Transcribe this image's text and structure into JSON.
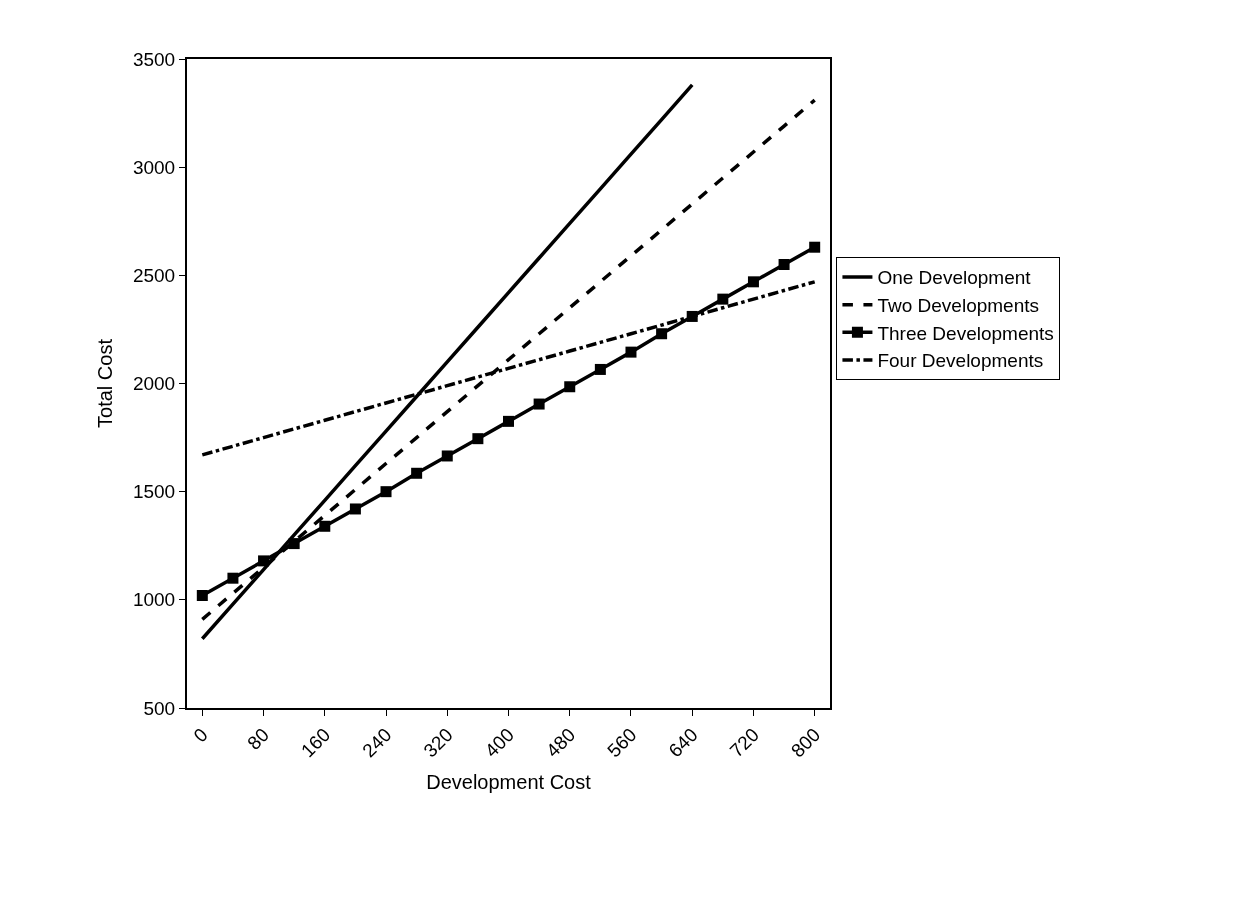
{
  "chart_data": {
    "type": "line",
    "xlabel": "Development Cost",
    "ylabel": "Total Cost",
    "categories": [
      "0",
      null,
      "80",
      null,
      "160",
      null,
      "240",
      null,
      "320",
      null,
      "400",
      null,
      "480",
      null,
      "560",
      null,
      "640",
      null,
      "720",
      null,
      "800"
    ],
    "ylim": [
      500,
      3500
    ],
    "yticks": [
      500,
      1000,
      1500,
      2000,
      2500,
      3000,
      3500
    ],
    "grid": false,
    "legend": "right",
    "series": [
      {
        "name": "One Development",
        "color": "#000000",
        "line_style": "solid",
        "marker": "none",
        "values": [
          820,
          980,
          1140,
          1300,
          1460,
          1620,
          1780,
          1940,
          2100,
          2260,
          2420,
          2580,
          2740,
          2900,
          3060,
          3220,
          3380,
          null,
          null,
          null,
          null
        ]
      },
      {
        "name": "Two Developments",
        "color": "#000000",
        "line_style": "dashed",
        "marker": "none",
        "values": [
          910,
          1030,
          1150,
          1270,
          1390,
          1510,
          1630,
          1750,
          1870,
          1990,
          2110,
          2230,
          2350,
          2470,
          2590,
          2710,
          2830,
          2950,
          3070,
          3190,
          3310
        ]
      },
      {
        "name": "Three Developments",
        "color": "#000000",
        "line_style": "solid",
        "marker": "square",
        "values": [
          1020,
          1100,
          1180,
          1260,
          1340,
          1420,
          1500,
          1585,
          1665,
          1745,
          1825,
          1905,
          1985,
          2065,
          2145,
          2230,
          2310,
          2390,
          2470,
          2550,
          2630
        ]
      },
      {
        "name": "Four Developments",
        "color": "#000000",
        "line_style": "dashdot",
        "marker": "none",
        "values": [
          1670,
          1710,
          1750,
          1790,
          1830,
          1870,
          1910,
          1950,
          1990,
          2030,
          2070,
          2110,
          2150,
          2190,
          2230,
          2270,
          2310,
          2350,
          2390,
          2430,
          2470
        ]
      }
    ]
  }
}
